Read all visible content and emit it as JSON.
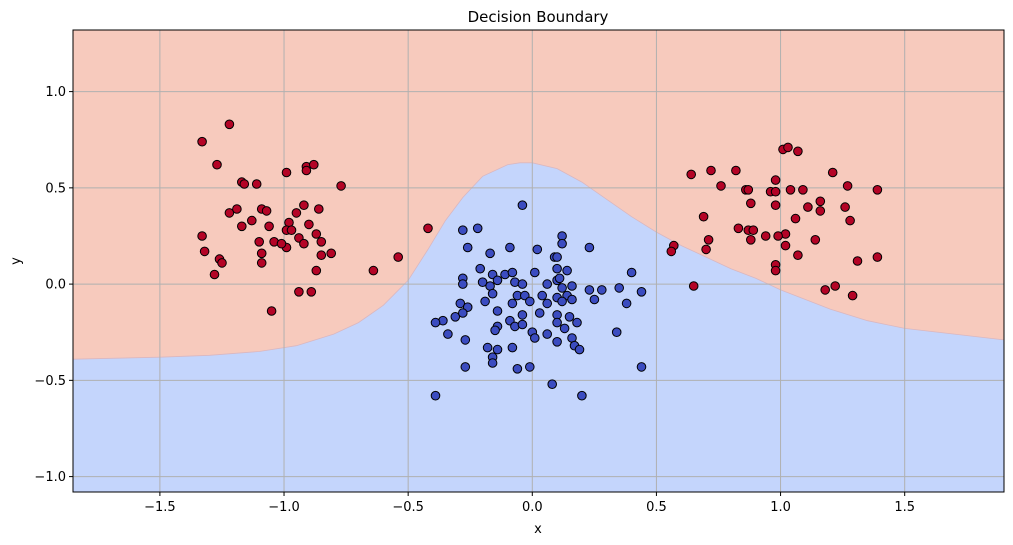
{
  "chart_data": {
    "type": "scatter",
    "title": "Decision Boundary",
    "xlabel": "x",
    "ylabel": "y",
    "xlim": [
      -1.85,
      1.9
    ],
    "ylim": [
      -1.08,
      1.32
    ],
    "xticks": [
      "−1.5",
      "−1.0",
      "−0.5",
      "0.0",
      "0.5",
      "1.0",
      "1.5"
    ],
    "xtick_values": [
      -1.5,
      -1.0,
      -0.5,
      0.0,
      0.5,
      1.0,
      1.5
    ],
    "yticks": [
      "−1.0",
      "−0.5",
      "0.0",
      "0.5",
      "1.0"
    ],
    "ytick_values": [
      -1.0,
      -0.5,
      0.0,
      0.5,
      1.0
    ],
    "grid": true,
    "region_colors": {
      "upper": "#f7cabd",
      "lower": "#c4d5fc",
      "edge": "#d9b7c0"
    },
    "point_colors": {
      "class_0": "#3b4cc0",
      "class_1": "#b40426",
      "edge": "#000000"
    },
    "boundary": [
      [
        -1.85,
        -0.39
      ],
      [
        -1.5,
        -0.38
      ],
      [
        -1.3,
        -0.37
      ],
      [
        -1.1,
        -0.35
      ],
      [
        -0.95,
        -0.32
      ],
      [
        -0.8,
        -0.26
      ],
      [
        -0.7,
        -0.2
      ],
      [
        -0.6,
        -0.11
      ],
      [
        -0.5,
        0.02
      ],
      [
        -0.42,
        0.18
      ],
      [
        -0.35,
        0.33
      ],
      [
        -0.28,
        0.45
      ],
      [
        -0.2,
        0.56
      ],
      [
        -0.1,
        0.62
      ],
      [
        -0.05,
        0.63
      ],
      [
        0.0,
        0.63
      ],
      [
        0.1,
        0.6
      ],
      [
        0.2,
        0.53
      ],
      [
        0.3,
        0.44
      ],
      [
        0.4,
        0.35
      ],
      [
        0.5,
        0.27
      ],
      [
        0.6,
        0.2
      ],
      [
        0.7,
        0.14
      ],
      [
        0.8,
        0.08
      ],
      [
        0.9,
        0.03
      ],
      [
        1.0,
        -0.03
      ],
      [
        1.1,
        -0.08
      ],
      [
        1.2,
        -0.13
      ],
      [
        1.35,
        -0.19
      ],
      [
        1.5,
        -0.23
      ],
      [
        1.7,
        -0.26
      ],
      [
        1.9,
        -0.29
      ]
    ],
    "series": [
      {
        "class": 1,
        "points": [
          [
            -1.33,
            0.74
          ],
          [
            -1.22,
            0.83
          ],
          [
            -1.27,
            0.62
          ],
          [
            -1.17,
            0.53
          ],
          [
            -1.16,
            0.52
          ],
          [
            -1.11,
            0.52
          ],
          [
            -0.99,
            0.58
          ],
          [
            -0.91,
            0.61
          ],
          [
            -0.91,
            0.59
          ],
          [
            -0.88,
            0.62
          ],
          [
            -0.77,
            0.51
          ],
          [
            -1.22,
            0.37
          ],
          [
            -1.19,
            0.39
          ],
          [
            -1.13,
            0.33
          ],
          [
            -1.09,
            0.39
          ],
          [
            -1.07,
            0.38
          ],
          [
            -0.98,
            0.32
          ],
          [
            -0.95,
            0.37
          ],
          [
            -0.92,
            0.41
          ],
          [
            -0.86,
            0.39
          ],
          [
            -0.9,
            0.31
          ],
          [
            -0.87,
            0.26
          ],
          [
            -1.17,
            0.3
          ],
          [
            -1.06,
            0.3
          ],
          [
            -0.99,
            0.28
          ],
          [
            -0.97,
            0.28
          ],
          [
            -1.1,
            0.22
          ],
          [
            -1.04,
            0.22
          ],
          [
            -0.99,
            0.19
          ],
          [
            -1.01,
            0.21
          ],
          [
            -0.94,
            0.24
          ],
          [
            -0.92,
            0.21
          ],
          [
            -0.85,
            0.22
          ],
          [
            -0.81,
            0.16
          ],
          [
            -0.85,
            0.15
          ],
          [
            -1.32,
            0.17
          ],
          [
            -1.33,
            0.25
          ],
          [
            -1.26,
            0.13
          ],
          [
            -1.25,
            0.11
          ],
          [
            -1.09,
            0.16
          ],
          [
            -1.09,
            0.11
          ],
          [
            -1.28,
            0.05
          ],
          [
            -0.87,
            0.07
          ],
          [
            -0.94,
            -0.04
          ],
          [
            -0.89,
            -0.04
          ],
          [
            -1.05,
            -0.14
          ],
          [
            -0.64,
            0.07
          ],
          [
            -0.54,
            0.14
          ],
          [
            -0.42,
            0.29
          ],
          [
            0.64,
            0.57
          ],
          [
            0.72,
            0.59
          ],
          [
            0.82,
            0.59
          ],
          [
            0.76,
            0.51
          ],
          [
            0.86,
            0.49
          ],
          [
            0.87,
            0.49
          ],
          [
            0.96,
            0.48
          ],
          [
            0.98,
            0.54
          ],
          [
            1.01,
            0.7
          ],
          [
            1.03,
            0.71
          ],
          [
            1.07,
            0.69
          ],
          [
            1.04,
            0.49
          ],
          [
            1.09,
            0.49
          ],
          [
            1.21,
            0.58
          ],
          [
            1.27,
            0.51
          ],
          [
            1.39,
            0.49
          ],
          [
            0.88,
            0.42
          ],
          [
            0.98,
            0.41
          ],
          [
            0.98,
            0.48
          ],
          [
            1.11,
            0.4
          ],
          [
            1.16,
            0.43
          ],
          [
            1.06,
            0.34
          ],
          [
            1.16,
            0.38
          ],
          [
            1.26,
            0.4
          ],
          [
            1.28,
            0.33
          ],
          [
            0.69,
            0.35
          ],
          [
            0.87,
            0.28
          ],
          [
            0.89,
            0.28
          ],
          [
            0.83,
            0.29
          ],
          [
            0.94,
            0.25
          ],
          [
            0.88,
            0.23
          ],
          [
            1.02,
            0.26
          ],
          [
            0.99,
            0.25
          ],
          [
            1.02,
            0.2
          ],
          [
            1.14,
            0.23
          ],
          [
            0.71,
            0.23
          ],
          [
            0.7,
            0.18
          ],
          [
            0.57,
            0.2
          ],
          [
            0.56,
            0.17
          ],
          [
            1.07,
            0.15
          ],
          [
            1.31,
            0.12
          ],
          [
            1.39,
            0.14
          ],
          [
            0.98,
            0.1
          ],
          [
            0.98,
            0.07
          ],
          [
            0.65,
            -0.01
          ],
          [
            1.18,
            -0.03
          ],
          [
            1.22,
            -0.01
          ],
          [
            1.29,
            -0.06
          ]
        ]
      },
      {
        "class": 0,
        "points": [
          [
            -0.04,
            0.41
          ],
          [
            -0.28,
            0.28
          ],
          [
            -0.22,
            0.29
          ],
          [
            -0.26,
            0.19
          ],
          [
            0.12,
            0.25
          ],
          [
            0.12,
            0.21
          ],
          [
            0.23,
            0.19
          ],
          [
            -0.17,
            0.16
          ],
          [
            -0.09,
            0.19
          ],
          [
            0.02,
            0.18
          ],
          [
            0.09,
            0.14
          ],
          [
            0.1,
            0.14
          ],
          [
            -0.21,
            0.08
          ],
          [
            -0.16,
            0.05
          ],
          [
            -0.11,
            0.05
          ],
          [
            -0.08,
            0.06
          ],
          [
            0.01,
            0.06
          ],
          [
            0.1,
            0.08
          ],
          [
            0.14,
            0.07
          ],
          [
            0.4,
            0.06
          ],
          [
            -0.28,
            0.03
          ],
          [
            -0.2,
            0.01
          ],
          [
            -0.14,
            0.02
          ],
          [
            -0.07,
            0.01
          ],
          [
            -0.04,
            0.0
          ],
          [
            0.1,
            0.02
          ],
          [
            0.11,
            0.03
          ],
          [
            0.12,
            -0.02
          ],
          [
            -0.28,
            0.0
          ],
          [
            -0.17,
            -0.01
          ],
          [
            0.06,
            0.0
          ],
          [
            0.16,
            -0.01
          ],
          [
            0.23,
            -0.03
          ],
          [
            0.28,
            -0.03
          ],
          [
            0.35,
            -0.02
          ],
          [
            0.44,
            -0.04
          ],
          [
            -0.16,
            -0.05
          ],
          [
            -0.06,
            -0.06
          ],
          [
            -0.03,
            -0.06
          ],
          [
            0.04,
            -0.06
          ],
          [
            0.1,
            -0.07
          ],
          [
            0.14,
            -0.06
          ],
          [
            -0.29,
            -0.1
          ],
          [
            -0.26,
            -0.12
          ],
          [
            -0.19,
            -0.09
          ],
          [
            -0.08,
            -0.1
          ],
          [
            -0.01,
            -0.09
          ],
          [
            0.06,
            -0.1
          ],
          [
            0.12,
            -0.09
          ],
          [
            0.16,
            -0.08
          ],
          [
            0.25,
            -0.08
          ],
          [
            0.38,
            -0.1
          ],
          [
            -0.36,
            -0.19
          ],
          [
            -0.31,
            -0.17
          ],
          [
            -0.28,
            -0.15
          ],
          [
            -0.14,
            -0.14
          ],
          [
            -0.09,
            -0.19
          ],
          [
            -0.04,
            -0.16
          ],
          [
            0.03,
            -0.15
          ],
          [
            0.1,
            -0.16
          ],
          [
            0.15,
            -0.17
          ],
          [
            -0.39,
            -0.2
          ],
          [
            -0.14,
            -0.22
          ],
          [
            -0.07,
            -0.22
          ],
          [
            -0.04,
            -0.21
          ],
          [
            0.1,
            -0.2
          ],
          [
            0.18,
            -0.2
          ],
          [
            -0.34,
            -0.26
          ],
          [
            -0.27,
            -0.29
          ],
          [
            -0.15,
            -0.24
          ],
          [
            0.0,
            -0.25
          ],
          [
            0.06,
            -0.26
          ],
          [
            0.13,
            -0.23
          ],
          [
            0.34,
            -0.25
          ],
          [
            -0.14,
            -0.34
          ],
          [
            -0.18,
            -0.33
          ],
          [
            -0.16,
            -0.38
          ],
          [
            -0.08,
            -0.33
          ],
          [
            0.01,
            -0.28
          ],
          [
            0.1,
            -0.3
          ],
          [
            0.16,
            -0.28
          ],
          [
            0.17,
            -0.32
          ],
          [
            0.19,
            -0.34
          ],
          [
            -0.16,
            -0.41
          ],
          [
            -0.27,
            -0.43
          ],
          [
            -0.06,
            -0.44
          ],
          [
            -0.01,
            -0.43
          ],
          [
            0.44,
            -0.43
          ],
          [
            0.08,
            -0.52
          ],
          [
            -0.39,
            -0.58
          ],
          [
            0.2,
            -0.58
          ]
        ]
      }
    ]
  }
}
